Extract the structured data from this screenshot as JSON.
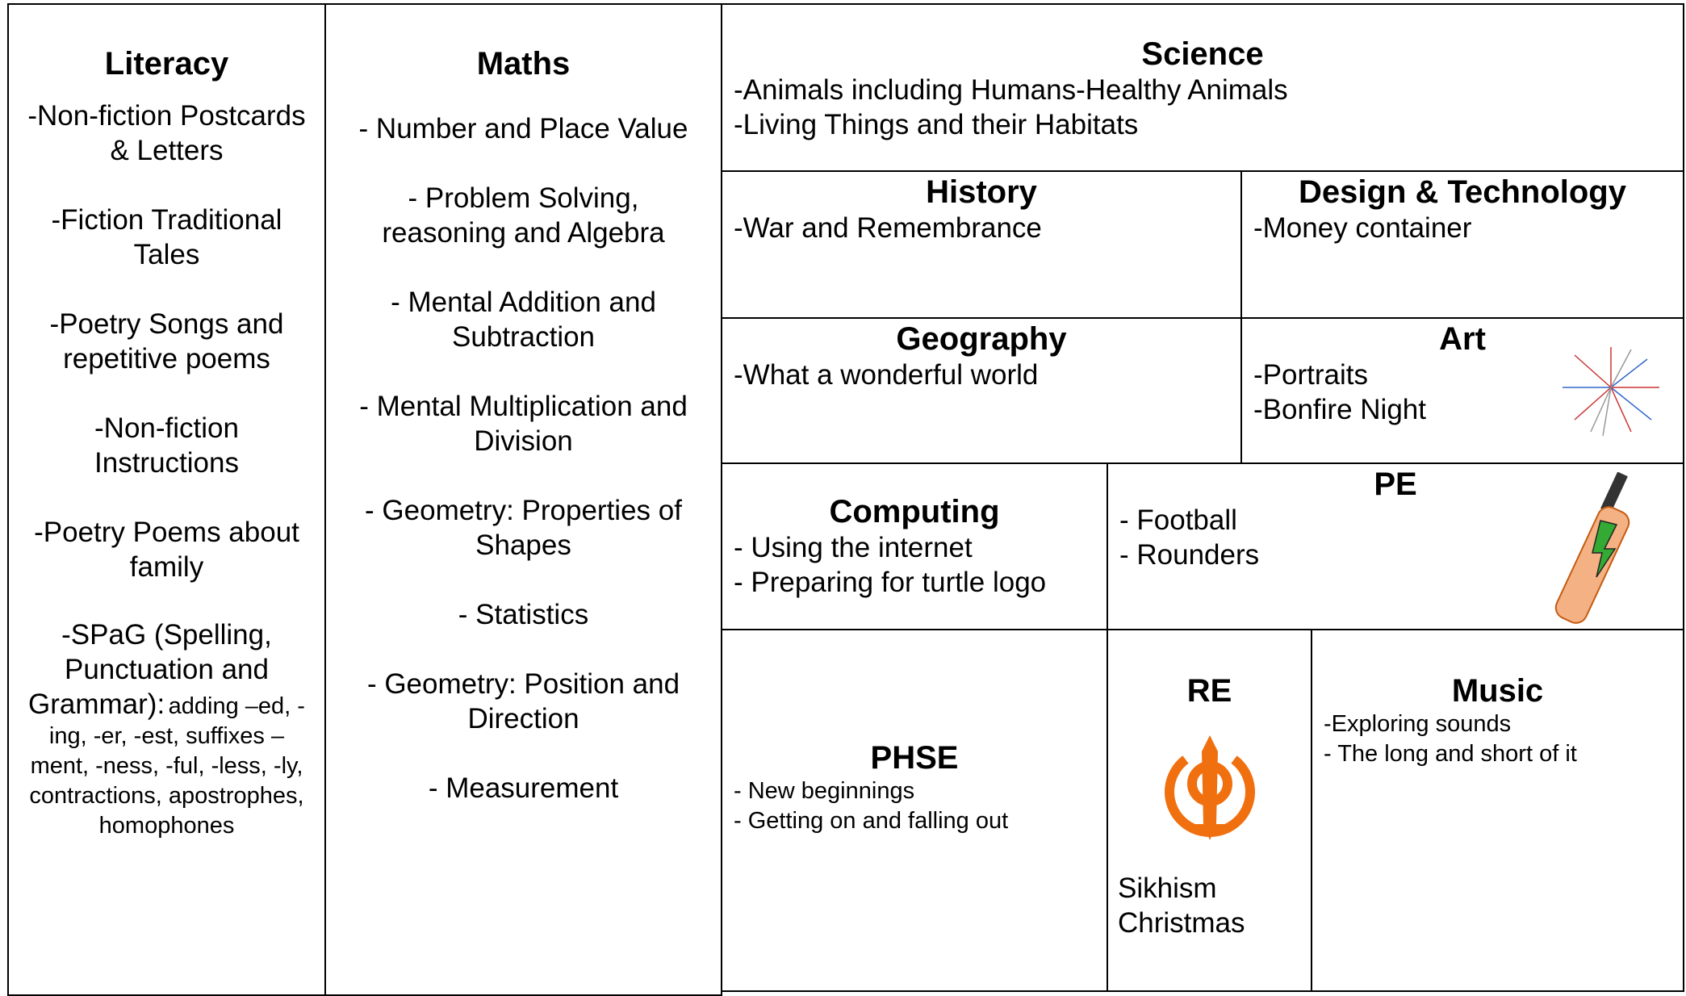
{
  "literacy": {
    "title": "Literacy",
    "items": [
      "-Non-fiction Postcards & Letters",
      "-Fiction Traditional Tales",
      "-Poetry Songs and repetitive poems",
      "-Non-fiction Instructions",
      "-Poetry Poems about family"
    ],
    "spag": "-SPaG (Spelling, Punctuation and Grammar):",
    "spag_detail": "adding –ed, -ing, -er, -est, suffixes –ment, -ness, -ful, -less, -ly, contractions, apostrophes, homophones"
  },
  "maths": {
    "title": "Maths",
    "items": [
      "- Number and Place Value",
      "- Problem Solving, reasoning and Algebra",
      "- Mental Addition and Subtraction",
      "- Mental Multiplication and Division",
      "- Geometry: Properties of Shapes",
      "- Statistics",
      "- Geometry: Position and Direction",
      "- Measurement"
    ]
  },
  "science": {
    "title": "Science",
    "items": [
      "-Animals including Humans-Healthy Animals",
      "-Living Things and their Habitats"
    ]
  },
  "history": {
    "title": "History",
    "items": [
      "-War and Remembrance"
    ]
  },
  "design_technology": {
    "title": "Design & Technology",
    "items": [
      "-Money container"
    ]
  },
  "geography": {
    "title": "Geography",
    "items": [
      "-What a wonderful world"
    ]
  },
  "art": {
    "title": "Art",
    "items": [
      "-Portraits",
      "-Bonfire Night"
    ]
  },
  "computing": {
    "title": "Computing",
    "items": [
      "- Using the internet",
      "- Preparing for turtle logo"
    ]
  },
  "pe": {
    "title": "PE",
    "items": [
      "- Football",
      "- Rounders"
    ]
  },
  "phse": {
    "title": "PHSE",
    "items": [
      "- New beginnings",
      "- Getting on and falling out"
    ]
  },
  "re": {
    "title": "RE",
    "items": [
      "Sikhism",
      "Christmas"
    ]
  },
  "music": {
    "title": "Music",
    "items": [
      "-Exploring sounds",
      "- The long and short of it"
    ]
  }
}
